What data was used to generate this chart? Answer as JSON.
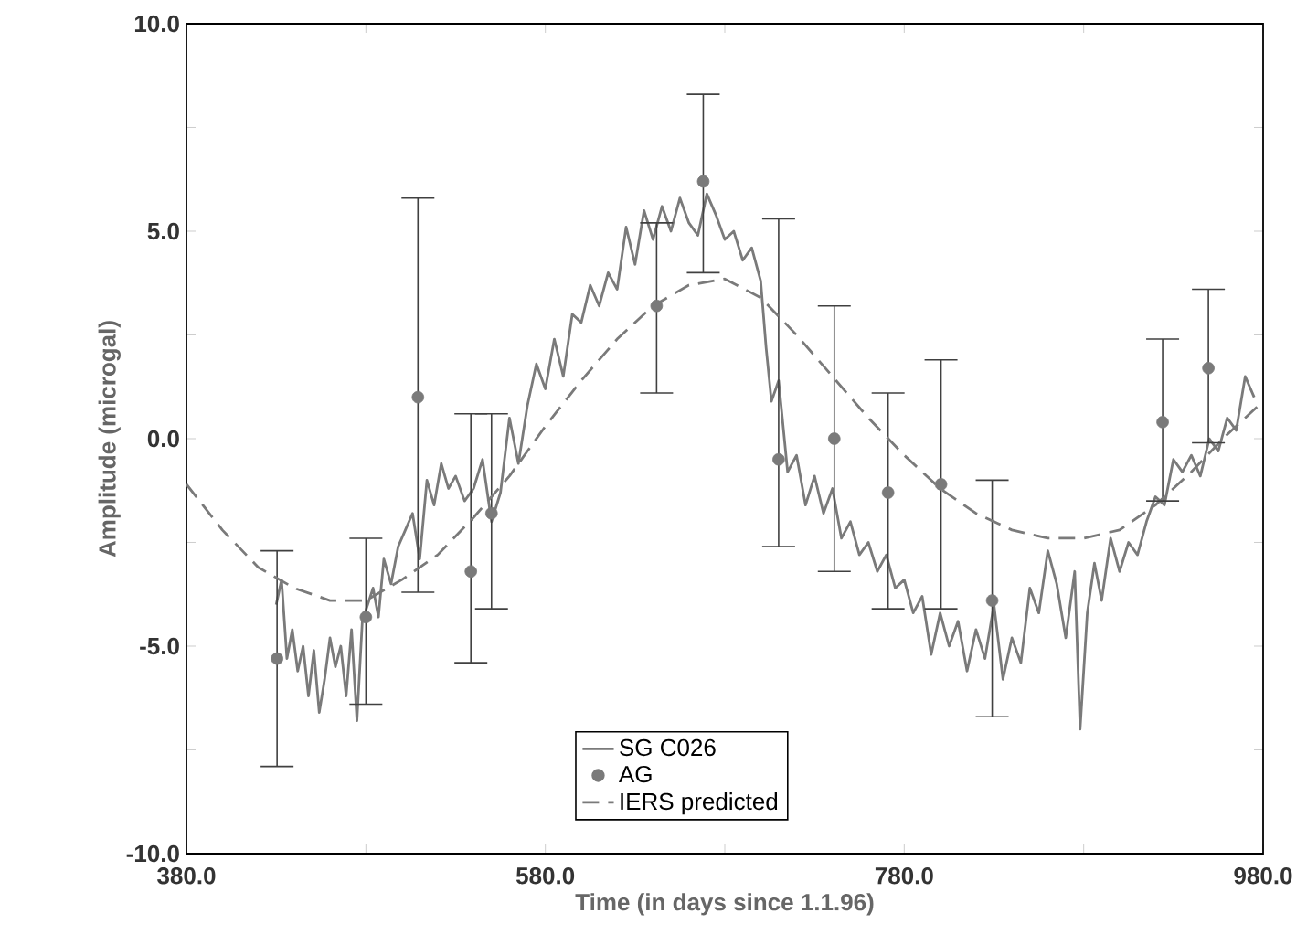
{
  "chart_data": {
    "type": "line",
    "xlabel": "Time  (in days since 1.1.96)",
    "ylabel": "Amplitude (microgal)",
    "xlim": [
      380,
      980
    ],
    "ylim": [
      -10,
      10
    ],
    "xticks": [
      {
        "value": 380,
        "label": "380.0"
      },
      {
        "value": 480,
        "label": null
      },
      {
        "value": 580,
        "label": "580.0"
      },
      {
        "value": 680,
        "label": null
      },
      {
        "value": 780,
        "label": "780.0"
      },
      {
        "value": 880,
        "label": null
      },
      {
        "value": 980,
        "label": "980.0"
      }
    ],
    "yticks": [
      {
        "value": -10,
        "label": "-10.0"
      },
      {
        "value": -7.5,
        "label": null
      },
      {
        "value": -5,
        "label": "-5.0"
      },
      {
        "value": -2.5,
        "label": null
      },
      {
        "value": 0,
        "label": "0.0"
      },
      {
        "value": 2.5,
        "label": null
      },
      {
        "value": 5,
        "label": "5.0"
      },
      {
        "value": 7.5,
        "label": null
      },
      {
        "value": 10,
        "label": "10.0"
      }
    ],
    "legend": "bottom",
    "series": [
      {
        "name": "SG C026",
        "color": "#7a7a7a",
        "line_style": "solid",
        "marker": "none",
        "x": [
          430,
          433,
          436,
          439,
          442,
          445,
          448,
          451,
          454,
          457,
          460,
          463,
          466,
          469,
          472,
          475,
          478,
          481,
          484,
          487,
          490,
          494,
          498,
          502,
          506,
          510,
          514,
          518,
          522,
          526,
          530,
          535,
          540,
          545,
          550,
          555,
          560,
          565,
          570,
          575,
          580,
          585,
          590,
          595,
          600,
          605,
          610,
          615,
          620,
          625,
          630,
          635,
          640,
          645,
          650,
          655,
          660,
          665,
          670,
          675,
          680,
          685,
          690,
          695,
          700,
          703,
          706,
          710,
          715,
          720,
          725,
          730,
          735,
          740,
          745,
          750,
          755,
          760,
          765,
          770,
          775,
          780,
          785,
          790,
          795,
          800,
          805,
          810,
          815,
          820,
          825,
          830,
          835,
          840,
          845,
          850,
          855,
          860,
          865,
          870,
          875,
          878,
          882,
          886,
          890,
          895,
          900,
          905,
          910,
          915,
          920,
          925,
          930,
          935,
          940,
          945,
          950,
          955,
          960,
          965,
          970,
          975
        ],
        "values": [
          -4.0,
          -3.4,
          -5.3,
          -4.6,
          -5.6,
          -5.0,
          -6.2,
          -5.1,
          -6.6,
          -5.8,
          -4.8,
          -5.5,
          -5.0,
          -6.2,
          -4.6,
          -6.8,
          -4.4,
          -4.0,
          -3.6,
          -4.3,
          -2.9,
          -3.5,
          -2.6,
          -2.2,
          -1.8,
          -2.9,
          -1.0,
          -1.6,
          -0.6,
          -1.2,
          -0.9,
          -1.5,
          -1.2,
          -0.5,
          -2.0,
          -1.3,
          0.5,
          -0.6,
          0.8,
          1.8,
          1.2,
          2.4,
          1.5,
          3.0,
          2.8,
          3.7,
          3.2,
          4.0,
          3.6,
          5.1,
          4.2,
          5.5,
          4.8,
          5.6,
          5.0,
          5.8,
          5.2,
          4.9,
          5.9,
          5.4,
          4.8,
          5.0,
          4.3,
          4.6,
          3.8,
          2.2,
          0.9,
          1.4,
          -0.8,
          -0.4,
          -1.6,
          -0.9,
          -1.8,
          -1.2,
          -2.4,
          -2.0,
          -2.8,
          -2.5,
          -3.2,
          -2.8,
          -3.6,
          -3.4,
          -4.2,
          -3.8,
          -5.2,
          -4.2,
          -5.0,
          -4.4,
          -5.6,
          -4.6,
          -5.3,
          -4.0,
          -5.8,
          -4.8,
          -5.4,
          -3.6,
          -4.2,
          -2.7,
          -3.5,
          -4.8,
          -3.2,
          -7.0,
          -4.2,
          -3.0,
          -3.9,
          -2.4,
          -3.2,
          -2.5,
          -2.8,
          -2.0,
          -1.4,
          -1.6,
          -0.5,
          -0.8,
          -0.4,
          -0.9,
          0.0,
          -0.3,
          0.5,
          0.2,
          1.5,
          1.0
        ]
      },
      {
        "name": "AG",
        "type": "scatter",
        "color": "#7a7a7a",
        "marker": "circle",
        "x": [
          430.5,
          480,
          509,
          538.5,
          550,
          642,
          668,
          710,
          741,
          771,
          800.5,
          829,
          924,
          949.5
        ],
        "values": [
          -5.3,
          -4.3,
          1.0,
          -3.2,
          -1.8,
          3.2,
          6.2,
          -0.5,
          0.0,
          -1.3,
          -1.1,
          -3.9,
          0.4,
          1.7
        ],
        "errors": [
          [
            -7.9,
            -2.7
          ],
          [
            -6.4,
            -2.4
          ],
          [
            -3.7,
            5.8
          ],
          [
            -5.4,
            0.6
          ],
          [
            -4.1,
            0.6
          ],
          [
            1.1,
            5.2
          ],
          [
            4.0,
            8.3
          ],
          [
            -2.6,
            5.3
          ],
          [
            -3.2,
            3.2
          ],
          [
            -4.1,
            1.1
          ],
          [
            -4.1,
            1.9
          ],
          [
            -6.7,
            -1.0
          ],
          [
            -1.5,
            2.4
          ],
          [
            -0.1,
            3.6
          ]
        ]
      },
      {
        "name": "IERS predicted",
        "color": "#7a7a7a",
        "line_style": "dashed",
        "marker": "none",
        "x": [
          380,
          400,
          420,
          440,
          460,
          480,
          500,
          520,
          540,
          560,
          580,
          600,
          620,
          640,
          660,
          680,
          700,
          720,
          740,
          760,
          780,
          800,
          820,
          840,
          860,
          880,
          900,
          920,
          940,
          960,
          980
        ],
        "values": [
          -1.1,
          -2.2,
          -3.1,
          -3.6,
          -3.9,
          -3.9,
          -3.4,
          -2.8,
          -1.9,
          -0.9,
          0.3,
          1.4,
          2.4,
          3.2,
          3.7,
          3.85,
          3.4,
          2.5,
          1.5,
          0.5,
          -0.4,
          -1.2,
          -1.8,
          -2.2,
          -2.4,
          -2.4,
          -2.2,
          -1.6,
          -0.8,
          0.1,
          0.9
        ]
      }
    ]
  }
}
